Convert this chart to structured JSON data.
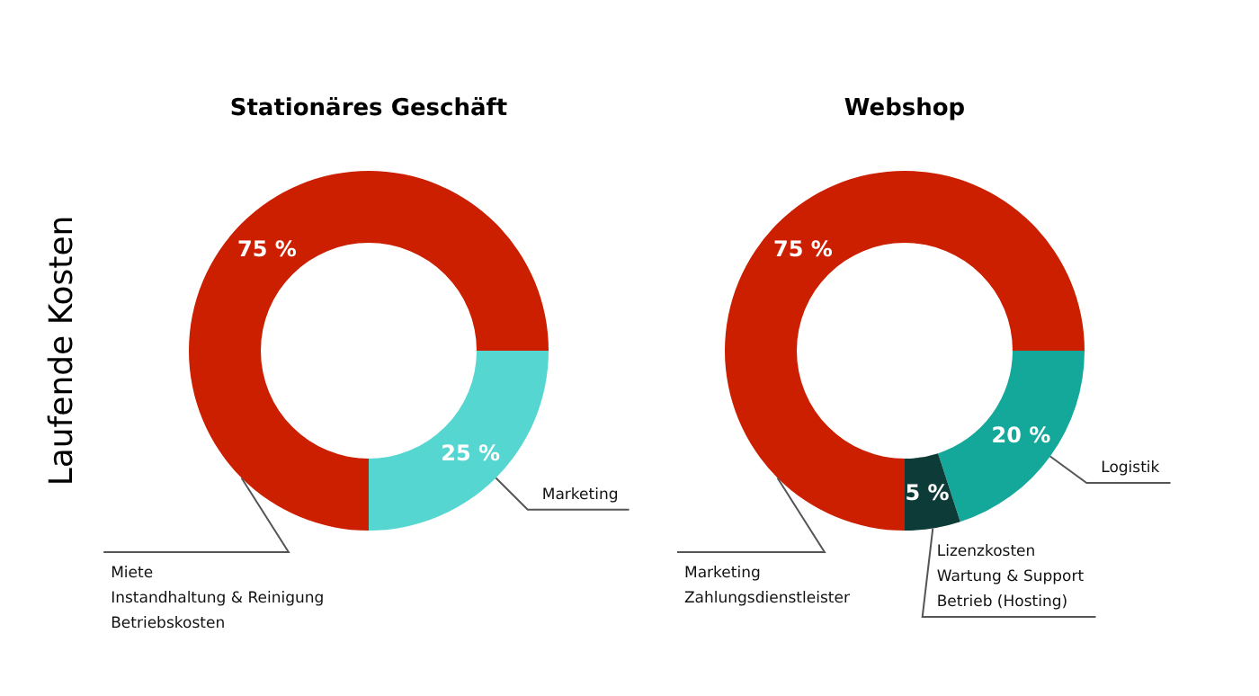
{
  "chart_data": [
    {
      "type": "donut",
      "title": "Stationäres Geschäft",
      "ylabel": "Laufende Kosten",
      "categories": [
        "Marketing",
        "Miete\nInstandhaltung & Reinigung\nBetriebskosten"
      ],
      "values": [
        25,
        75
      ],
      "value_labels": [
        "25 %",
        "75 %"
      ],
      "colors": [
        "#55d6d0",
        "#cc1f00"
      ]
    },
    {
      "type": "donut",
      "title": "Webshop",
      "categories": [
        "Logistik",
        "Lizenzkosten\nWartung & Support\nBetrieb (Hosting)",
        "Marketing\nZahlungsdienstleister"
      ],
      "values": [
        20,
        5,
        75
      ],
      "value_labels": [
        "20 %",
        "5 %",
        "75 %"
      ],
      "colors": [
        "#14a89a",
        "#0d3b38",
        "#cc1f00"
      ]
    }
  ]
}
